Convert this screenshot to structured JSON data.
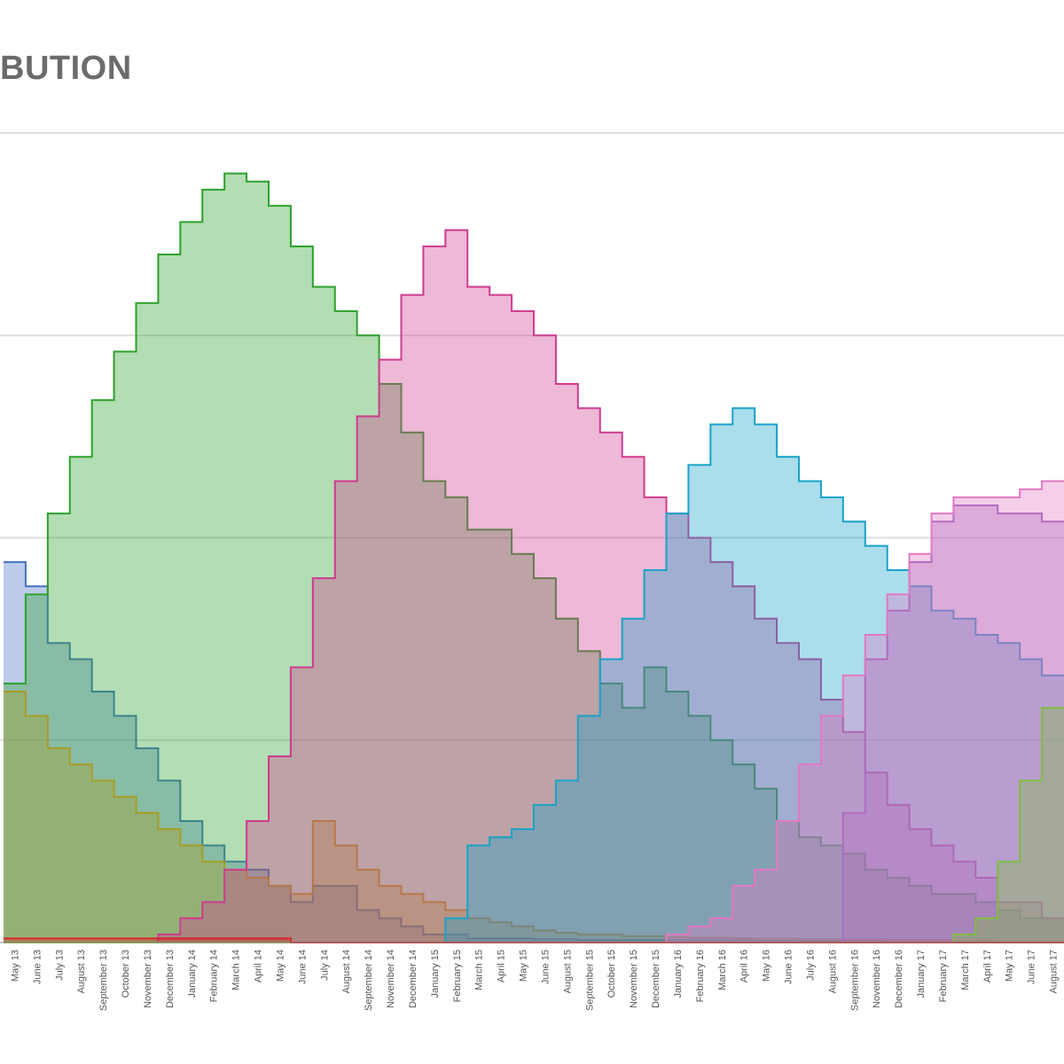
{
  "header": {
    "title": "BUTION"
  },
  "chart_data": {
    "type": "area",
    "title": "BUTION",
    "xlabel": "",
    "ylabel": "",
    "step": true,
    "grid": true,
    "legend": "none",
    "categories": [
      "May 13",
      "June 13",
      "July 13",
      "August 13",
      "September 13",
      "October 13",
      "November 13",
      "December 13",
      "January 14",
      "February 14",
      "March 14",
      "April 14",
      "May 14",
      "June 14",
      "July 14",
      "August 14",
      "September 14",
      "November 14",
      "December 14",
      "January 15",
      "February 15",
      "March 15",
      "April 15",
      "May 15",
      "June 15",
      "August 15",
      "September 15",
      "October 15",
      "November 15",
      "December 15",
      "January 16",
      "February 16",
      "March 16",
      "April 16",
      "May 16",
      "June 16",
      "July 16",
      "August 16",
      "September 16",
      "November 16",
      "December 16",
      "January 17",
      "February 17",
      "March 17",
      "April 17",
      "May 17",
      "June 17",
      "August 17"
    ],
    "series": [
      {
        "color": "#4472c4",
        "values": [
          47,
          44,
          37,
          35,
          31,
          28,
          24,
          20,
          15,
          12,
          10,
          9,
          7,
          5,
          7,
          7,
          4,
          3,
          2,
          1,
          1,
          0.5,
          0.5,
          0.5,
          0.4,
          0.4,
          0.3,
          0.3,
          0.3,
          0.3,
          0.3,
          0.3,
          0.3,
          0.3,
          0.2,
          0.2,
          0.2,
          0.2,
          0.2,
          0.2,
          0.2,
          0.2,
          0.2,
          0.2,
          0.2,
          0.1,
          0.1,
          0.1
        ]
      },
      {
        "color": "#ee9a1e",
        "values": [
          31,
          28,
          24,
          22,
          20,
          18,
          16,
          14,
          12,
          10,
          9,
          8,
          7,
          6,
          15,
          12,
          9,
          7,
          6,
          5,
          4,
          3,
          2.5,
          2,
          1.5,
          1.2,
          1,
          1,
          0.8,
          0.8,
          0.7,
          0.6,
          0.6,
          0.5,
          0.5,
          0.5,
          0.4,
          0.4,
          0.4,
          0.4,
          0.3,
          0.3,
          0.3,
          0.3,
          0.3,
          0.2,
          0.2,
          0.2
        ]
      },
      {
        "color": "#2ca02c",
        "values": [
          32,
          43,
          53,
          60,
          67,
          73,
          79,
          85,
          89,
          93,
          95,
          94,
          91,
          86,
          81,
          78,
          75,
          69,
          63,
          57,
          55,
          51,
          51,
          48,
          45,
          40,
          36,
          32,
          29,
          34,
          31,
          28,
          25,
          22,
          19,
          15,
          13,
          12,
          11,
          9,
          8,
          7,
          6,
          6,
          5,
          4,
          3,
          3
        ]
      },
      {
        "color": "#cf3a8f",
        "values": [
          0,
          0,
          0,
          0,
          0,
          0,
          0,
          1,
          3,
          5,
          9,
          15,
          23,
          34,
          45,
          57,
          65,
          72,
          80,
          86,
          88,
          81,
          80,
          78,
          75,
          69,
          66,
          63,
          60,
          55,
          53,
          50,
          47,
          44,
          40,
          37,
          35,
          30,
          26,
          21,
          17,
          14,
          12,
          10,
          8,
          5,
          5,
          3
        ]
      },
      {
        "color": "#17a2c8",
        "values": [
          0,
          0,
          0,
          0,
          0,
          0,
          0,
          0,
          0,
          0,
          0,
          0,
          0,
          0,
          0,
          0,
          0,
          0,
          0,
          0,
          3,
          12,
          13,
          14,
          17,
          20,
          28,
          35,
          40,
          46,
          53,
          59,
          64,
          66,
          64,
          60,
          57,
          55,
          52,
          49,
          46,
          44,
          41,
          40,
          38,
          37,
          35,
          33
        ]
      },
      {
        "color": "#9467bd",
        "values": [
          0,
          0,
          0,
          0,
          0,
          0,
          0,
          0,
          0,
          0,
          0,
          0,
          0,
          0,
          0,
          0,
          0,
          0,
          0,
          0,
          0,
          0,
          0,
          0,
          0,
          0,
          0,
          0,
          0,
          0,
          0,
          0,
          0,
          0,
          0,
          0,
          0,
          0,
          16,
          35,
          41,
          47,
          52,
          54,
          54,
          53,
          53,
          52
        ]
      },
      {
        "color": "#e377c2",
        "values": [
          0,
          0,
          0,
          0,
          0,
          0,
          0,
          0,
          0,
          0,
          0,
          0,
          0,
          0,
          0,
          0,
          0,
          0,
          0,
          0,
          0,
          0,
          0,
          0,
          0,
          0,
          0,
          0,
          0,
          0,
          1,
          2,
          3,
          7,
          9,
          15,
          22,
          28,
          33,
          38,
          43,
          48,
          53,
          55,
          55,
          55,
          56,
          57
        ]
      },
      {
        "color": "#7fbf3f",
        "values": [
          0,
          0,
          0,
          0,
          0,
          0,
          0,
          0,
          0,
          0,
          0,
          0,
          0,
          0,
          0,
          0,
          0,
          0,
          0,
          0,
          0,
          0,
          0,
          0,
          0,
          0,
          0,
          0,
          0,
          0,
          0,
          0,
          0,
          0,
          0,
          0,
          0,
          0,
          0,
          0,
          0,
          0,
          0,
          1,
          3,
          10,
          20,
          29
        ]
      },
      {
        "color": "#d62728",
        "values": [
          0.5,
          0.5,
          0.5,
          0.5,
          0.5,
          0.5,
          0.5,
          0.5,
          0.5,
          0.5,
          0.5,
          0.5,
          0.5,
          0,
          0,
          0,
          0,
          0,
          0,
          0,
          0,
          0,
          0,
          0,
          0,
          0,
          0,
          0,
          0,
          0,
          0,
          0,
          0,
          0,
          0,
          0,
          0,
          0,
          0,
          0,
          0,
          0,
          0,
          0,
          0,
          0,
          0,
          0
        ]
      }
    ]
  }
}
